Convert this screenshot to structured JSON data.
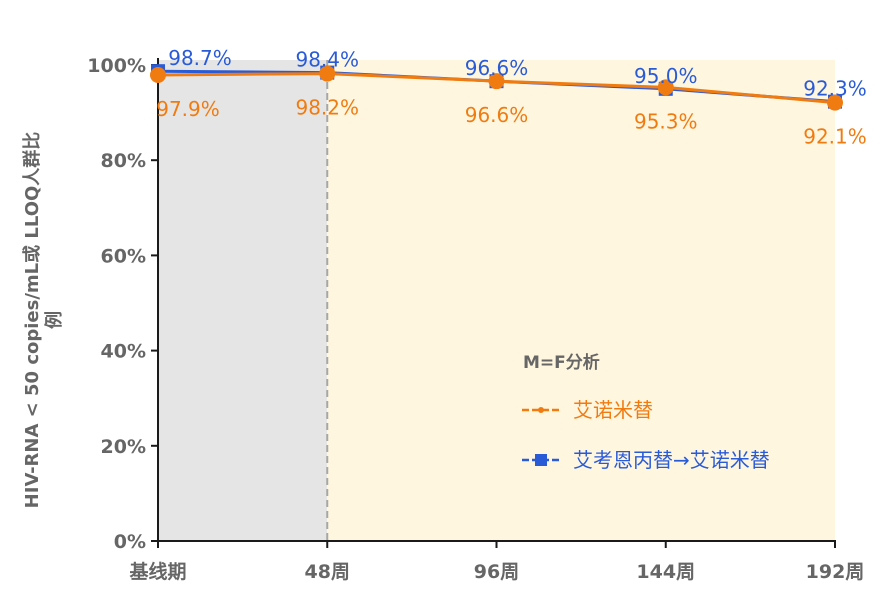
{
  "chart_data": {
    "type": "line",
    "categories": [
      "基线期",
      "48周",
      "96周",
      "144周",
      "192周"
    ],
    "ylabel": "HIV-RNA < 50 copies/mL或 LLOQ人群比例",
    "ylim": [
      0,
      100
    ],
    "yticks": [
      "0%",
      "20%",
      "40%",
      "60%",
      "80%",
      "100%"
    ],
    "ytick_values": [
      0,
      20,
      40,
      60,
      80,
      100
    ],
    "legend_title": "M=F分析",
    "legend_position": "center-right",
    "grid": false,
    "series": [
      {
        "name": "艾诺米替",
        "color": "#f07c11",
        "marker": "circle",
        "values": [
          97.9,
          98.2,
          96.6,
          95.3,
          92.1
        ],
        "labels": [
          "97.9%",
          "98.2%",
          "96.6%",
          "95.3%",
          "92.1%"
        ]
      },
      {
        "name": "艾考恩丙替→艾诺米替",
        "color": "#2a5bd7",
        "marker": "square",
        "values": [
          98.7,
          98.4,
          96.6,
          95.0,
          92.3
        ],
        "labels": [
          "98.7%",
          "98.4%",
          "96.6%",
          "95.0%",
          "92.3%"
        ]
      }
    ],
    "background": {
      "gray_span": [
        "基线期",
        "48周"
      ],
      "gray": "#e5e5e5",
      "cream": "#fff6e0"
    }
  }
}
